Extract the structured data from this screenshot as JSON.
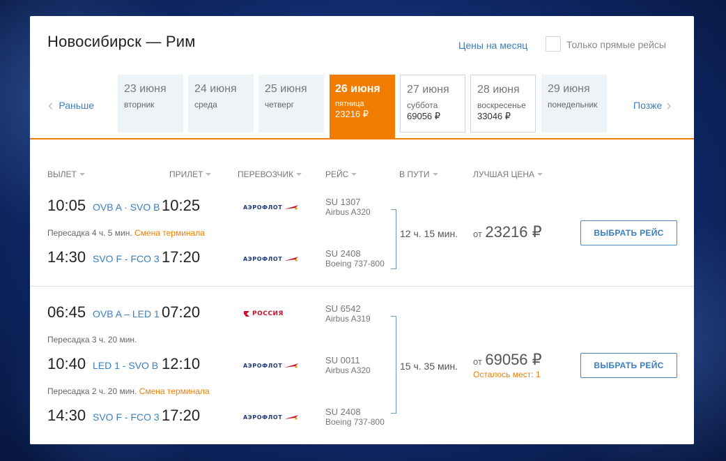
{
  "header": {
    "route": "Новосибирск — Рим",
    "month_prices_link": "Цены на месяц",
    "direct_only_label": "Только прямые рейсы"
  },
  "date_nav": {
    "prev_label": "Раньше",
    "next_label": "Позже",
    "days": [
      {
        "date": "23 июня",
        "weekday": "вторник",
        "price": ""
      },
      {
        "date": "24 июня",
        "weekday": "среда",
        "price": ""
      },
      {
        "date": "25 июня",
        "weekday": "четверг",
        "price": ""
      },
      {
        "date": "26 июня",
        "weekday": "пятница",
        "price": "23216 ₽"
      },
      {
        "date": "27 июня",
        "weekday": "суббота",
        "price": "69056 ₽"
      },
      {
        "date": "28 июня",
        "weekday": "воскресенье",
        "price": "33046 ₽"
      },
      {
        "date": "29 июня",
        "weekday": "понедельник",
        "price": ""
      }
    ]
  },
  "columns": {
    "departure": "ВЫЛЕТ",
    "arrival": "ПРИЛЕТ",
    "carrier": "ПЕРЕВОЗЧИК",
    "flight": "РЕЙС",
    "duration": "В ПУТИ",
    "best_price": "ЛУЧШАЯ ЦЕНА"
  },
  "results": [
    {
      "segments": [
        {
          "dep_time": "10:05",
          "route": "OVB A · SVO B",
          "arr_time": "10:25",
          "airline": "АЭРОФЛОТ",
          "flight_no": "SU 1307",
          "aircraft": "Airbus A320"
        },
        {
          "dep_time": "14:30",
          "route": "SVO F - FCO 3",
          "arr_time": "17:20",
          "airline": "АЭРОФЛОТ",
          "flight_no": "SU 2408",
          "aircraft": "Boeing 737-800"
        }
      ],
      "layovers": [
        {
          "text": "Пересадка 4 ч. 5 мин.",
          "warning": "Смена терминала"
        }
      ],
      "duration": "12 ч. 15 мин.",
      "price_prefix": "от",
      "price": "23216 ₽",
      "seats_left": "",
      "select_label": "ВЫБРАТЬ РЕЙС"
    },
    {
      "segments": [
        {
          "dep_time": "06:45",
          "route": "OVB A – LED 1",
          "arr_time": "07:20",
          "airline": "РОССИЯ",
          "flight_no": "SU 6542",
          "aircraft": "Airbus A319"
        },
        {
          "dep_time": "10:40",
          "route": "LED 1 - SVO B",
          "arr_time": "12:10",
          "airline": "АЭРОФЛОТ",
          "flight_no": "SU 0011",
          "aircraft": "Airbus A320"
        },
        {
          "dep_time": "14:30",
          "route": "SVO F - FCO 3",
          "arr_time": "17:20",
          "airline": "АЭРОФЛОТ",
          "flight_no": "SU 2408",
          "aircraft": "Boeing 737-800"
        }
      ],
      "layovers": [
        {
          "text": "Пересадка 3 ч. 20 мин.",
          "warning": ""
        },
        {
          "text": "Пересадка 2 ч. 20 мин.",
          "warning": "Смена терминала"
        }
      ],
      "duration": "15 ч. 35 мин.",
      "price_prefix": "от",
      "price": "69056 ₽",
      "seats_left": "Осталось мест: 1",
      "select_label": "ВЫБРАТЬ РЕЙС"
    }
  ],
  "colors": {
    "accent": "#f07d00",
    "link": "#3a7fc0",
    "aeroflot": "#1e3a7c",
    "rossiya": "#c8102e"
  }
}
